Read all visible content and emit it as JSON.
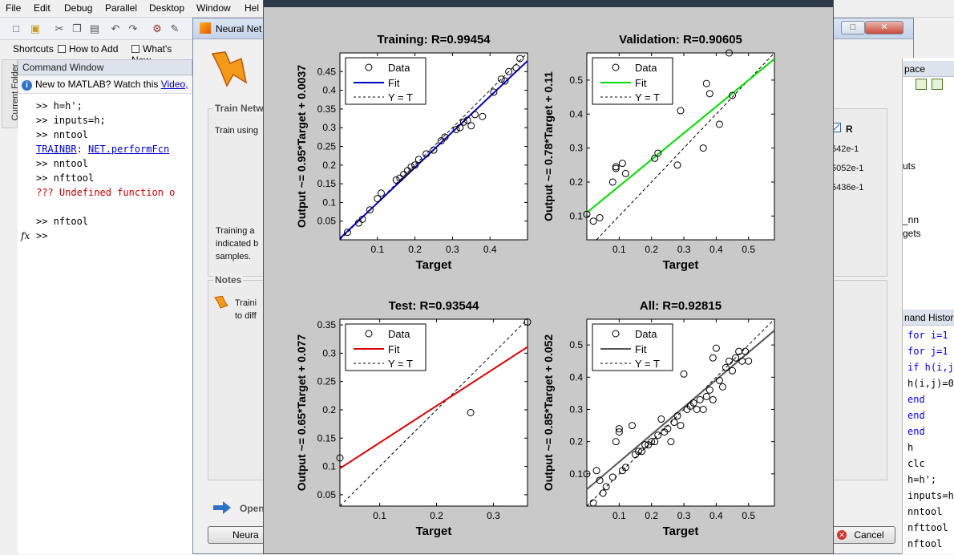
{
  "menubar": [
    "File",
    "Edit",
    "Debug",
    "Parallel",
    "Desktop",
    "Window",
    "Hel"
  ],
  "shortcuts": {
    "shortcuts": "Shortcuts",
    "how_to_add": "How to Add",
    "whats_new": "What's New"
  },
  "current_folder_tab": "Current Folder",
  "command_window": {
    "title": "Command Window",
    "notice": {
      "text": "New to MATLAB? Watch this ",
      "link": "Video,"
    },
    "lines": [
      {
        "kind": "cmd",
        "text": ">> h=h';"
      },
      {
        "kind": "cmd",
        "text": ">> inputs=h;"
      },
      {
        "kind": "cmd",
        "text": ">> nntool"
      },
      {
        "kind": "link",
        "a": "TRAINBR",
        "sep": ": ",
        "b": "NET.performFcn"
      },
      {
        "kind": "cmd",
        "text": ">> nntool"
      },
      {
        "kind": "cmd",
        "text": ">> nfttool"
      },
      {
        "kind": "err",
        "text": "??? Undefined function o"
      },
      {
        "kind": "blank",
        "text": ""
      },
      {
        "kind": "cmd",
        "text": ">> nftool"
      },
      {
        "kind": "cmd",
        "text": ">>"
      }
    ],
    "prompt_symbol": "fx"
  },
  "nn_window": {
    "title": "Neural Net",
    "train_group": "Train Netw",
    "train_using": "Train using",
    "training_text": [
      "Training a",
      "indicated b",
      "samples."
    ],
    "notes_group": "Notes",
    "notes_text": [
      "Traini",
      "to diff"
    ],
    "r_header": "R",
    "r_values": [
      "542e-1",
      "5052e-1",
      "5436e-1"
    ],
    "open_label": "Open",
    "neural_button": "Neura",
    "cancel_button": "Cancel"
  },
  "right_panel": {
    "workspace_title": "pace",
    "workspace_items": [
      "uts",
      "_nn",
      "gets"
    ],
    "history_title": "nand Histor",
    "history": [
      {
        "text": "for i=1",
        "kw": true
      },
      {
        "text": "for j=1",
        "kw": true
      },
      {
        "text": "if h(i,j",
        "kw": true
      },
      {
        "text": "h(i,j)=0",
        "kw": false
      },
      {
        "text": "end",
        "kw": true
      },
      {
        "text": "end",
        "kw": true
      },
      {
        "text": "end",
        "kw": true
      },
      {
        "text": "h",
        "kw": false
      },
      {
        "text": "clc",
        "kw": false
      },
      {
        "text": "h=h';",
        "kw": false
      },
      {
        "text": "inputs=h",
        "kw": false
      },
      {
        "text": "nntool",
        "kw": false
      },
      {
        "text": "nfttool",
        "kw": false
      },
      {
        "text": "nftool",
        "kw": false
      }
    ]
  },
  "colors": {
    "training_fit": "#0000cc",
    "validation_fit": "#00dd00",
    "test_fit": "#dd0000",
    "all_fit": "#555555"
  },
  "chart_data": [
    {
      "type": "scatter",
      "title": "Training: R=0.99454",
      "xlabel": "Target",
      "ylabel": "Output ~= 0.95*Target + 0.0037",
      "xlim": [
        0.0,
        0.5
      ],
      "ylim": [
        0.0,
        0.5
      ],
      "xticks": [
        0.1,
        0.2,
        0.3,
        0.4
      ],
      "yticks": [
        0.05,
        0.1,
        0.15,
        0.2,
        0.25,
        0.3,
        0.35,
        0.4,
        0.45
      ],
      "legend": [
        "Data",
        "Fit",
        "Y = T"
      ],
      "fit": {
        "slope": 0.95,
        "intercept": 0.0037
      },
      "fit_color": "#0000cc",
      "x": [
        0.02,
        0.05,
        0.06,
        0.08,
        0.1,
        0.11,
        0.15,
        0.16,
        0.17,
        0.18,
        0.19,
        0.2,
        0.21,
        0.23,
        0.25,
        0.27,
        0.28,
        0.31,
        0.32,
        0.33,
        0.34,
        0.35,
        0.36,
        0.38,
        0.41,
        0.43,
        0.44,
        0.45,
        0.47,
        0.48
      ],
      "y": [
        0.02,
        0.045,
        0.055,
        0.08,
        0.11,
        0.125,
        0.16,
        0.165,
        0.175,
        0.185,
        0.195,
        0.2,
        0.215,
        0.23,
        0.24,
        0.265,
        0.275,
        0.295,
        0.3,
        0.315,
        0.32,
        0.305,
        0.335,
        0.33,
        0.395,
        0.43,
        0.425,
        0.45,
        0.46,
        0.485
      ]
    },
    {
      "type": "scatter",
      "title": "Validation: R=0.90605",
      "xlabel": "Target",
      "ylabel": "Output ~= 0.78*Target + 0.11",
      "xlim": [
        0.0,
        0.58
      ],
      "ylim": [
        0.03,
        0.58
      ],
      "xticks": [
        0.1,
        0.2,
        0.3,
        0.4,
        0.5
      ],
      "yticks": [
        0.1,
        0.2,
        0.3,
        0.4,
        0.5
      ],
      "legend": [
        "Data",
        "Fit",
        "Y = T"
      ],
      "fit": {
        "slope": 0.78,
        "intercept": 0.11
      },
      "fit_color": "#00dd00",
      "x": [
        0.0,
        0.02,
        0.04,
        0.08,
        0.09,
        0.09,
        0.11,
        0.12,
        0.21,
        0.22,
        0.28,
        0.29,
        0.36,
        0.37,
        0.38,
        0.41,
        0.44,
        0.45
      ],
      "y": [
        0.105,
        0.085,
        0.095,
        0.2,
        0.24,
        0.245,
        0.255,
        0.225,
        0.27,
        0.285,
        0.25,
        0.41,
        0.3,
        0.49,
        0.46,
        0.37,
        0.58,
        0.455
      ]
    },
    {
      "type": "scatter",
      "title": "Test: R=0.93544",
      "xlabel": "Target",
      "ylabel": "Output ~= 0.65*Target + 0.077",
      "xlim": [
        0.03,
        0.36
      ],
      "ylim": [
        0.03,
        0.36
      ],
      "xticks": [
        0.1,
        0.2,
        0.3
      ],
      "yticks": [
        0.05,
        0.1,
        0.15,
        0.2,
        0.25,
        0.3,
        0.35
      ],
      "legend": [
        "Data",
        "Fit",
        "Y = T"
      ],
      "fit": {
        "slope": 0.65,
        "intercept": 0.077
      },
      "fit_color": "#dd0000",
      "x": [
        0.03,
        0.26,
        0.36
      ],
      "y": [
        0.115,
        0.195,
        0.355
      ]
    },
    {
      "type": "scatter",
      "title": "All: R=0.92815",
      "xlabel": "Target",
      "ylabel": "Output ~= 0.85*Target + 0.052",
      "xlim": [
        0.0,
        0.58
      ],
      "ylim": [
        0.0,
        0.58
      ],
      "xticks": [
        0.1,
        0.2,
        0.3,
        0.4,
        0.5
      ],
      "yticks": [
        0.1,
        0.2,
        0.3,
        0.4,
        0.5
      ],
      "legend": [
        "Data",
        "Fit",
        "Y = T"
      ],
      "fit": {
        "slope": 0.85,
        "intercept": 0.052
      },
      "fit_color": "#555555",
      "x": [
        0.02,
        0.03,
        0.04,
        0.05,
        0.06,
        0.08,
        0.09,
        0.1,
        0.1,
        0.11,
        0.12,
        0.14,
        0.15,
        0.16,
        0.17,
        0.18,
        0.19,
        0.2,
        0.21,
        0.22,
        0.23,
        0.24,
        0.25,
        0.26,
        0.27,
        0.28,
        0.29,
        0.3,
        0.31,
        0.32,
        0.33,
        0.34,
        0.35,
        0.36,
        0.37,
        0.38,
        0.39,
        0.4,
        0.41,
        0.42,
        0.43,
        0.44,
        0.45,
        0.46,
        0.47,
        0.48,
        0.49,
        0.5,
        0.0,
        0.39
      ],
      "y": [
        0.01,
        0.11,
        0.08,
        0.04,
        0.06,
        0.09,
        0.2,
        0.24,
        0.23,
        0.11,
        0.12,
        0.25,
        0.16,
        0.17,
        0.17,
        0.19,
        0.19,
        0.2,
        0.2,
        0.22,
        0.27,
        0.23,
        0.24,
        0.2,
        0.26,
        0.28,
        0.25,
        0.41,
        0.3,
        0.31,
        0.32,
        0.3,
        0.33,
        0.3,
        0.34,
        0.36,
        0.33,
        0.49,
        0.39,
        0.37,
        0.43,
        0.45,
        0.42,
        0.46,
        0.48,
        0.45,
        0.48,
        0.45,
        0.1,
        0.46
      ]
    }
  ]
}
